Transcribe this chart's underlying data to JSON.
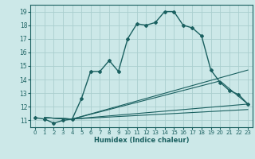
{
  "xlabel": "Humidex (Indice chaleur)",
  "bg_color": "#cce8e8",
  "grid_color": "#aacece",
  "line_color": "#1a6060",
  "xlim": [
    -0.5,
    23.5
  ],
  "ylim": [
    10.5,
    19.5
  ],
  "xticks": [
    0,
    1,
    2,
    3,
    4,
    5,
    6,
    7,
    8,
    9,
    10,
    11,
    12,
    13,
    14,
    15,
    16,
    17,
    18,
    19,
    20,
    21,
    22,
    23
  ],
  "yticks": [
    11,
    12,
    13,
    14,
    15,
    16,
    17,
    18,
    19
  ],
  "series1_x": [
    0,
    1,
    2,
    3,
    4,
    5,
    6,
    7,
    8,
    9,
    10,
    11,
    12,
    13,
    14,
    15,
    16,
    17,
    18,
    19,
    20,
    21,
    22,
    23
  ],
  "series1_y": [
    11.2,
    11.1,
    10.8,
    11.0,
    11.1,
    12.6,
    14.6,
    14.6,
    15.4,
    14.6,
    17.0,
    18.1,
    18.0,
    18.2,
    19.0,
    19.0,
    18.0,
    17.8,
    17.2,
    14.7,
    13.8,
    13.2,
    12.9,
    12.2
  ],
  "series2_x": [
    1,
    4,
    23
  ],
  "series2_y": [
    11.2,
    11.1,
    14.7
  ],
  "series3_x": [
    1,
    4,
    20,
    23
  ],
  "series3_y": [
    11.2,
    11.1,
    13.9,
    12.2
  ],
  "series4_x": [
    1,
    4,
    23
  ],
  "series4_y": [
    11.2,
    11.1,
    12.2
  ],
  "series5_x": [
    1,
    4,
    23
  ],
  "series5_y": [
    11.2,
    11.1,
    11.8
  ]
}
